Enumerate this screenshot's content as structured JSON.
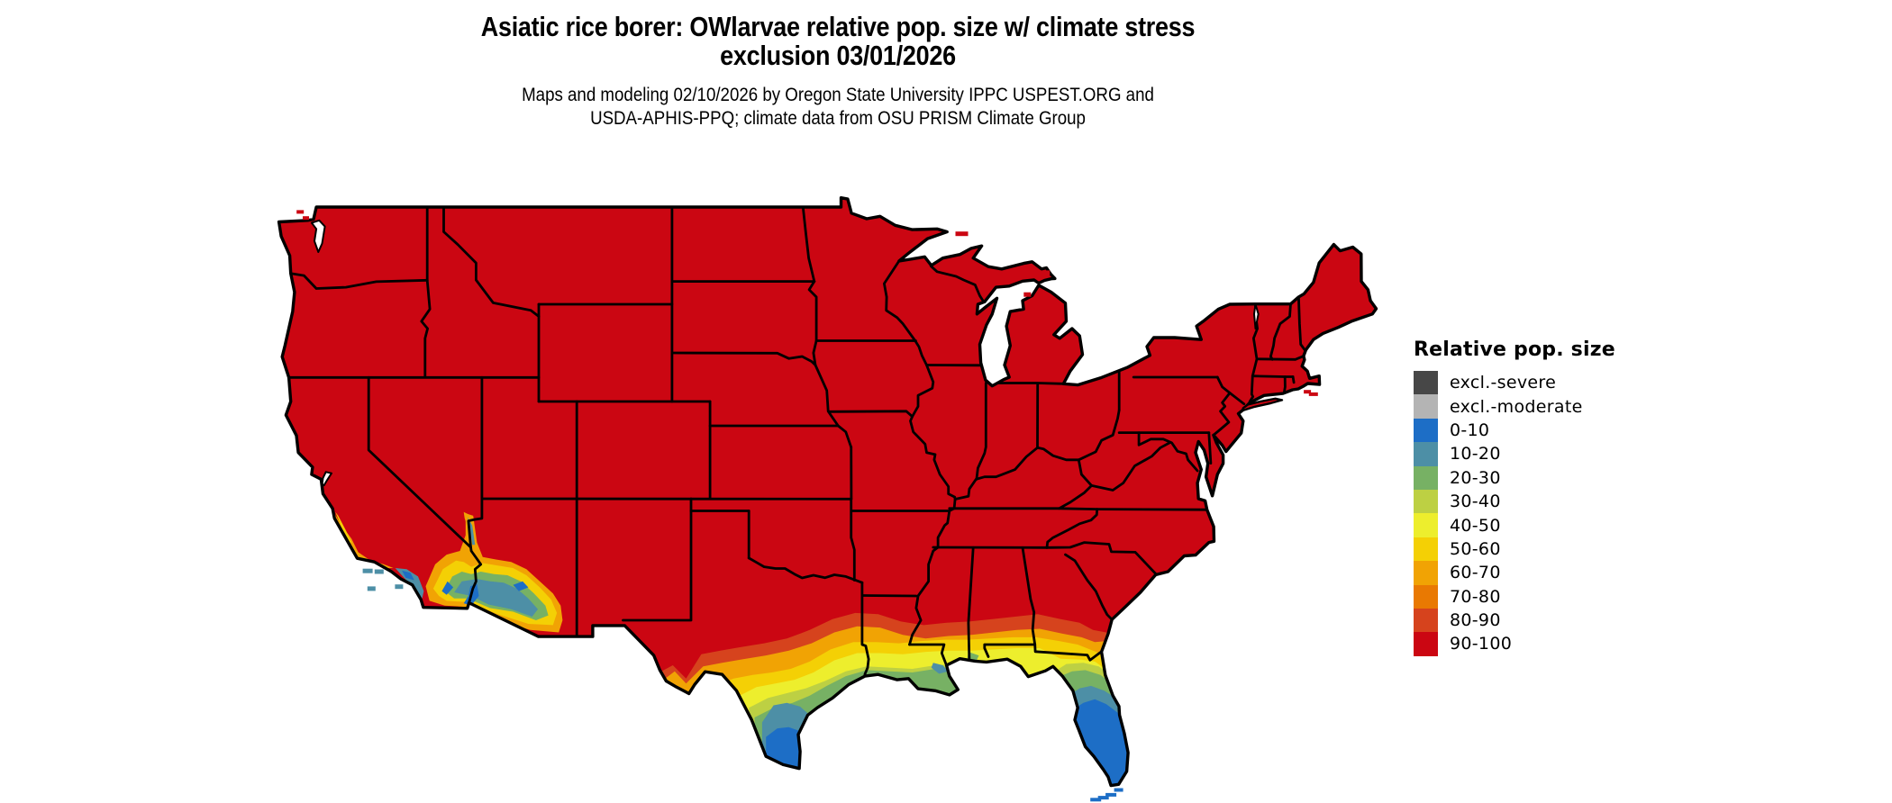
{
  "figure": {
    "background": "#ffffff",
    "text_color": "#000000",
    "map_outline_color": "#000000",
    "water_color": "#ffffff"
  },
  "title": {
    "line1": "Asiatic rice borer: OWlarvae relative pop. size w/ climate stress",
    "line2": "exclusion 03/01/2026"
  },
  "subtitle": {
    "line1": "Maps and modeling 02/10/2026 by Oregon State University IPPC USPEST.ORG and",
    "line2": "USDA-APHIS-PPQ; climate data from OSU PRISM Climate Group"
  },
  "map": {
    "region": "contiguous United States",
    "dominant_class": "90-100"
  },
  "legend": {
    "title": "Relative pop. size",
    "items": [
      {
        "label": "excl.-severe",
        "color": "#474747"
      },
      {
        "label": "excl.-moderate",
        "color": "#b4b4b4"
      },
      {
        "label": "0-10",
        "color": "#1d6ec6"
      },
      {
        "label": "10-20",
        "color": "#4d8fa6"
      },
      {
        "label": "20-30",
        "color": "#77b164"
      },
      {
        "label": "30-40",
        "color": "#bdd043"
      },
      {
        "label": "40-50",
        "color": "#edee2d"
      },
      {
        "label": "50-60",
        "color": "#f4d005"
      },
      {
        "label": "60-70",
        "color": "#f1a304"
      },
      {
        "label": "70-80",
        "color": "#e97902"
      },
      {
        "label": "80-90",
        "color": "#d6431d"
      },
      {
        "label": "90-100",
        "color": "#cb0612"
      }
    ]
  }
}
